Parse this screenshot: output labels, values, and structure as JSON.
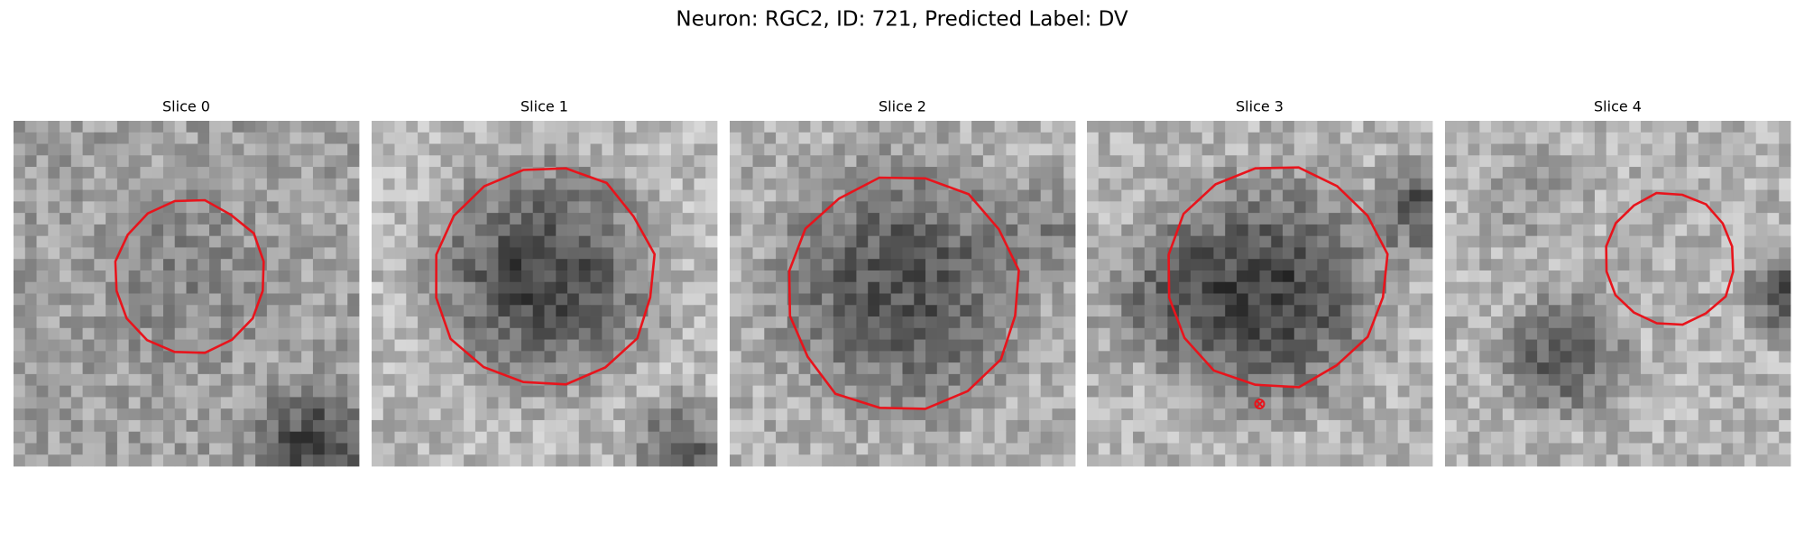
{
  "header": {
    "title": "Neuron: RGC2, ID: 721, Predicted Label: DV"
  },
  "panels": [
    {
      "title": "Slice 0"
    },
    {
      "title": "Slice 1"
    },
    {
      "title": "Slice 2"
    },
    {
      "title": "Slice 3"
    },
    {
      "title": "Slice 4"
    }
  ]
}
